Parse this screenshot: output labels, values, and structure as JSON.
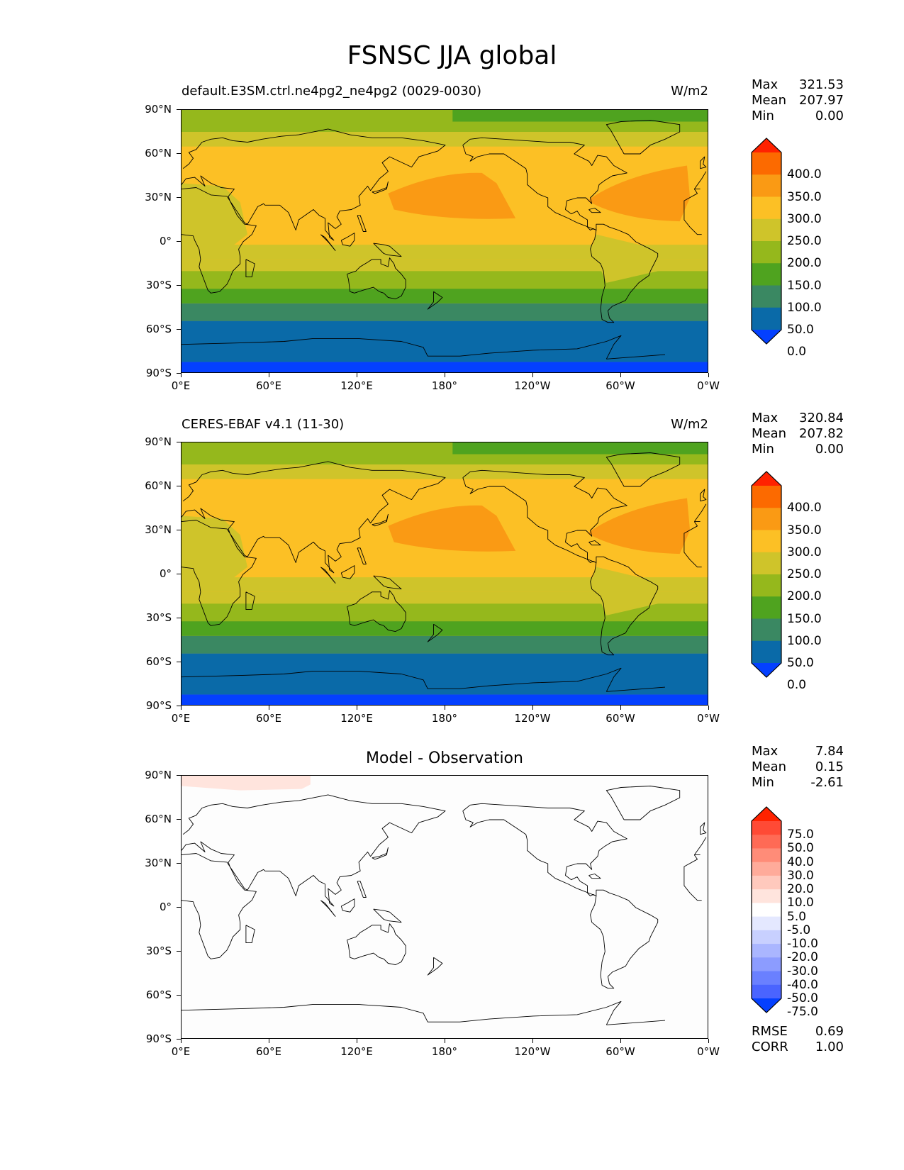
{
  "figure_title": "FSNSC JJA global",
  "x_ticks": [
    "0°E",
    "60°E",
    "120°E",
    "180°",
    "120°W",
    "60°W",
    "0°W"
  ],
  "y_ticks": [
    "90°N",
    "60°N",
    "30°N",
    "0°",
    "30°S",
    "60°S",
    "90°S"
  ],
  "panels": [
    {
      "title": "default.E3SM.ctrl.ne4pg2_ne4pg2 (0029-0030)",
      "units": "W/m2",
      "stats": {
        "max_label": "Max",
        "max": "321.53",
        "mean_label": "Mean",
        "mean": "207.97",
        "min_label": "Min",
        "min": "0.00"
      },
      "colorbar": {
        "levels": [
          "400.0",
          "350.0",
          "300.0",
          "250.0",
          "200.0",
          "150.0",
          "100.0",
          "50.0",
          "0.0"
        ],
        "colors": [
          "#ff2200",
          "#fc6a00",
          "#fa9a14",
          "#fcc025",
          "#cfc42a",
          "#95b81c",
          "#4fa31f",
          "#3a8862",
          "#0a6aa8",
          "#0440ff"
        ]
      }
    },
    {
      "title": "CERES-EBAF v4.1 (11-30)",
      "units": "W/m2",
      "stats": {
        "max_label": "Max",
        "max": "320.84",
        "mean_label": "Mean",
        "mean": "207.82",
        "min_label": "Min",
        "min": "0.00"
      },
      "colorbar": {
        "levels": [
          "400.0",
          "350.0",
          "300.0",
          "250.0",
          "200.0",
          "150.0",
          "100.0",
          "50.0",
          "0.0"
        ],
        "colors": [
          "#ff2200",
          "#fc6a00",
          "#fa9a14",
          "#fcc025",
          "#cfc42a",
          "#95b81c",
          "#4fa31f",
          "#3a8862",
          "#0a6aa8",
          "#0440ff"
        ]
      }
    },
    {
      "title": "Model - Observation",
      "stats": {
        "max_label": "Max",
        "max": "7.84",
        "mean_label": "Mean",
        "mean": "0.15",
        "min_label": "Min",
        "min": "-2.61"
      },
      "colorbar": {
        "levels": [
          "75.0",
          "50.0",
          "40.0",
          "30.0",
          "20.0",
          "10.0",
          "5.0",
          "-5.0",
          "-10.0",
          "-20.0",
          "-30.0",
          "-40.0",
          "-50.0",
          "-75.0"
        ],
        "colors": [
          "#ff2200",
          "#ff4a35",
          "#ff6a55",
          "#ff8c78",
          "#ffab9a",
          "#ffc9bd",
          "#ffe4dd",
          "#ffffff",
          "#e4e8ff",
          "#c8d0ff",
          "#aab6ff",
          "#8c9cff",
          "#6a80ff",
          "#4a64ff",
          "#0440ff"
        ]
      },
      "metrics": {
        "rmse_label": "RMSE",
        "rmse": "0.69",
        "corr_label": "CORR",
        "corr": "1.00"
      }
    }
  ]
}
